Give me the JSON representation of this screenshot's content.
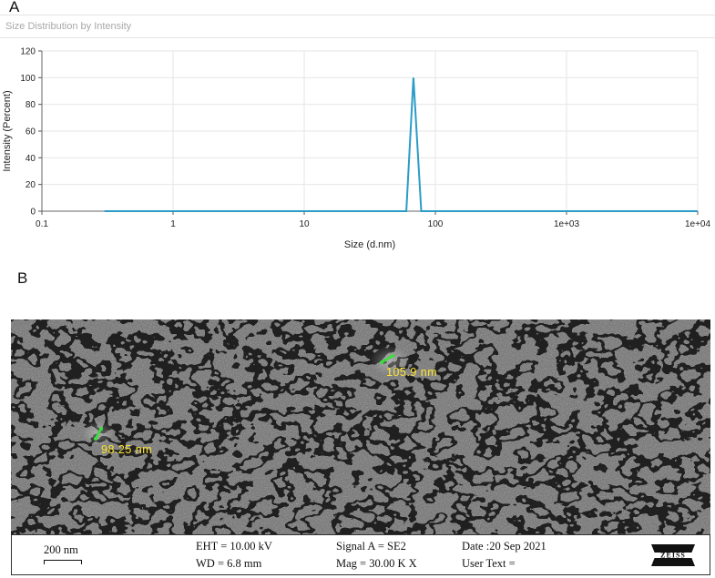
{
  "panels": {
    "a_label": "A",
    "b_label": "B"
  },
  "chart_data": {
    "type": "line",
    "title": "Size Distribution by Intensity",
    "xlabel": "Size (d.nm)",
    "ylabel": "Intensity (Percent)",
    "xscale": "log",
    "xlim": [
      0.1,
      10000
    ],
    "ylim": [
      0,
      120
    ],
    "x_ticks": [
      "0.1",
      "1",
      "10",
      "100",
      "1e+03",
      "1e+04"
    ],
    "y_ticks": [
      "0",
      "20",
      "40",
      "60",
      "80",
      "100",
      "120"
    ],
    "grid": true,
    "series": [
      {
        "color": "#2a9cc7",
        "x": [
          0.3,
          60,
          68,
          78,
          10000
        ],
        "y": [
          0,
          0,
          100,
          0,
          0
        ]
      }
    ]
  },
  "sem": {
    "annotations": [
      "105.9 nm",
      "98.25 nm"
    ],
    "info": {
      "scale": "200 nm",
      "eht": "EHT = 10.00 kV",
      "wd": "WD =  6.8 mm",
      "signal": "Signal A = SE2",
      "mag": "Mag =   30.00 K X",
      "date": "Date :20 Sep 2021",
      "user_text": "User Text =",
      "logo": "ZEISS"
    },
    "colors": {
      "annotation": "#ffe62e",
      "marker": "#39e23b"
    }
  }
}
